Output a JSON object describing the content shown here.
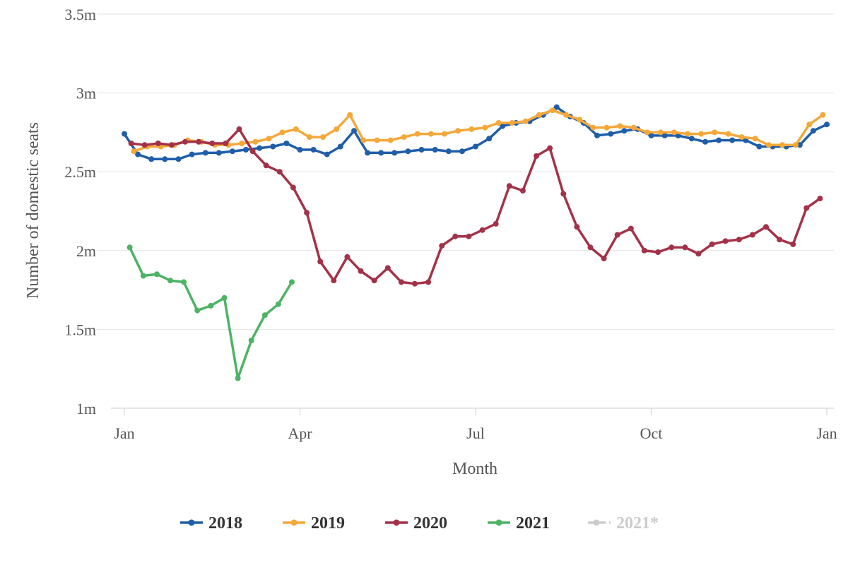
{
  "chart_data": {
    "type": "line",
    "xlabel": "Month",
    "ylabel": "Number of domestic seats",
    "x_ticks": [
      {
        "label": "Jan",
        "week": 0
      },
      {
        "label": "Apr",
        "week": 13
      },
      {
        "label": "Jul",
        "week": 26
      },
      {
        "label": "Oct",
        "week": 39
      },
      {
        "label": "Jan",
        "week": 52
      }
    ],
    "y_ticks": [
      {
        "label": "1m",
        "value": 1.0
      },
      {
        "label": "1.5m",
        "value": 1.5
      },
      {
        "label": "2m",
        "value": 2.0
      },
      {
        "label": "2.5m",
        "value": 2.5
      },
      {
        "label": "3m",
        "value": 3.0
      },
      {
        "label": "3.5m",
        "value": 3.5
      }
    ],
    "ylim": [
      1.0,
      3.5
    ],
    "xlim": [
      0,
      52.2
    ],
    "grid": "horizontal",
    "legend_position": "bottom",
    "series": [
      {
        "name": "2018",
        "color": "#1f5ea8",
        "visible": true,
        "start_week": 0,
        "values": [
          2.74,
          2.61,
          2.58,
          2.58,
          2.58,
          2.61,
          2.62,
          2.62,
          2.63,
          2.64,
          2.65,
          2.66,
          2.68,
          2.64,
          2.64,
          2.61,
          2.66,
          2.76,
          2.62,
          2.62,
          2.62,
          2.63,
          2.64,
          2.64,
          2.63,
          2.63,
          2.66,
          2.71,
          2.79,
          2.81,
          2.82,
          2.86,
          2.91,
          2.85,
          2.81,
          2.73,
          2.74,
          2.76,
          2.77,
          2.73,
          2.73,
          2.73,
          2.71,
          2.69,
          2.7,
          2.7,
          2.7,
          2.66,
          2.66,
          2.66,
          2.67,
          2.76,
          2.8
        ]
      },
      {
        "name": "2019",
        "color": "#f4a83a",
        "visible": true,
        "start_week": 0.7,
        "values": [
          2.63,
          2.66,
          2.66,
          2.67,
          2.7,
          2.69,
          2.67,
          2.67,
          2.68,
          2.69,
          2.71,
          2.75,
          2.77,
          2.72,
          2.72,
          2.77,
          2.86,
          2.7,
          2.7,
          2.7,
          2.72,
          2.74,
          2.74,
          2.74,
          2.76,
          2.77,
          2.78,
          2.81,
          2.81,
          2.82,
          2.86,
          2.89,
          2.86,
          2.83,
          2.78,
          2.78,
          2.79,
          2.78,
          2.75,
          2.75,
          2.75,
          2.74,
          2.74,
          2.75,
          2.74,
          2.72,
          2.71,
          2.67,
          2.67,
          2.67,
          2.8,
          2.86
        ]
      },
      {
        "name": "2020",
        "color": "#a33248",
        "visible": true,
        "start_week": 0.5,
        "values": [
          2.68,
          2.67,
          2.68,
          2.67,
          2.69,
          2.69,
          2.68,
          2.68,
          2.77,
          2.63,
          2.54,
          2.5,
          2.4,
          2.24,
          1.93,
          1.81,
          1.96,
          1.87,
          1.81,
          1.89,
          1.8,
          1.79,
          1.8,
          2.03,
          2.09,
          2.09,
          2.13,
          2.17,
          2.41,
          2.38,
          2.6,
          2.65,
          2.36,
          2.15,
          2.02,
          1.95,
          2.1,
          2.14,
          2.0,
          1.99,
          2.02,
          2.02,
          1.98,
          2.04,
          2.06,
          2.07,
          2.1,
          2.15,
          2.07,
          2.04,
          2.27,
          2.33
        ]
      },
      {
        "name": "2021",
        "color": "#4db365",
        "visible": true,
        "start_week": 0.4,
        "values": [
          2.02,
          1.84,
          1.85,
          1.81,
          1.8,
          1.62,
          1.65,
          1.7,
          1.19,
          1.43,
          1.59,
          1.66,
          1.8
        ]
      },
      {
        "name": "2021*",
        "color": "#cccccc",
        "visible": false,
        "start_week": 0,
        "values": []
      }
    ]
  }
}
